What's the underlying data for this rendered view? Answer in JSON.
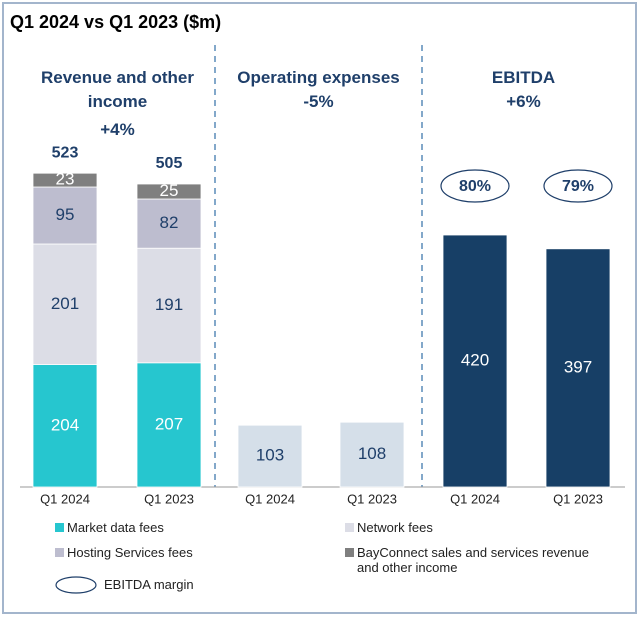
{
  "title": "Q1 2024 vs Q1 2023 ($m)",
  "chart_data": [
    {
      "type": "stacked_bar",
      "title": "Revenue and other income",
      "subtitle": "+4%",
      "categories": [
        "Q1 2024",
        "Q1 2023"
      ],
      "series": [
        {
          "name": "Market data fees",
          "color": "#26c6cf",
          "values": [
            204,
            207
          ]
        },
        {
          "name": "Network fees",
          "color": "#dcdde6",
          "values": [
            201,
            191
          ]
        },
        {
          "name": "Hosting Services fees",
          "color": "#bdbdcf",
          "values": [
            95,
            82
          ]
        },
        {
          "name": "BayConnect sales and services revenue and other income",
          "color": "#7f7f7f",
          "values": [
            23,
            25
          ]
        }
      ],
      "totals": [
        523,
        505
      ]
    },
    {
      "type": "bar",
      "title": "Operating expenses",
      "subtitle": "-5%",
      "categories": [
        "Q1 2024",
        "Q1 2023"
      ],
      "values": [
        103,
        108
      ],
      "color": "#d5dfe9"
    },
    {
      "type": "bar",
      "title": "EBITDA",
      "subtitle": "+6%",
      "categories": [
        "Q1 2024",
        "Q1 2023"
      ],
      "values": [
        420,
        397
      ],
      "color": "#173f66",
      "margin": {
        "name": "EBITDA margin",
        "values": [
          80,
          79
        ],
        "value_labels": [
          "80%",
          "79%"
        ]
      }
    }
  ]
}
